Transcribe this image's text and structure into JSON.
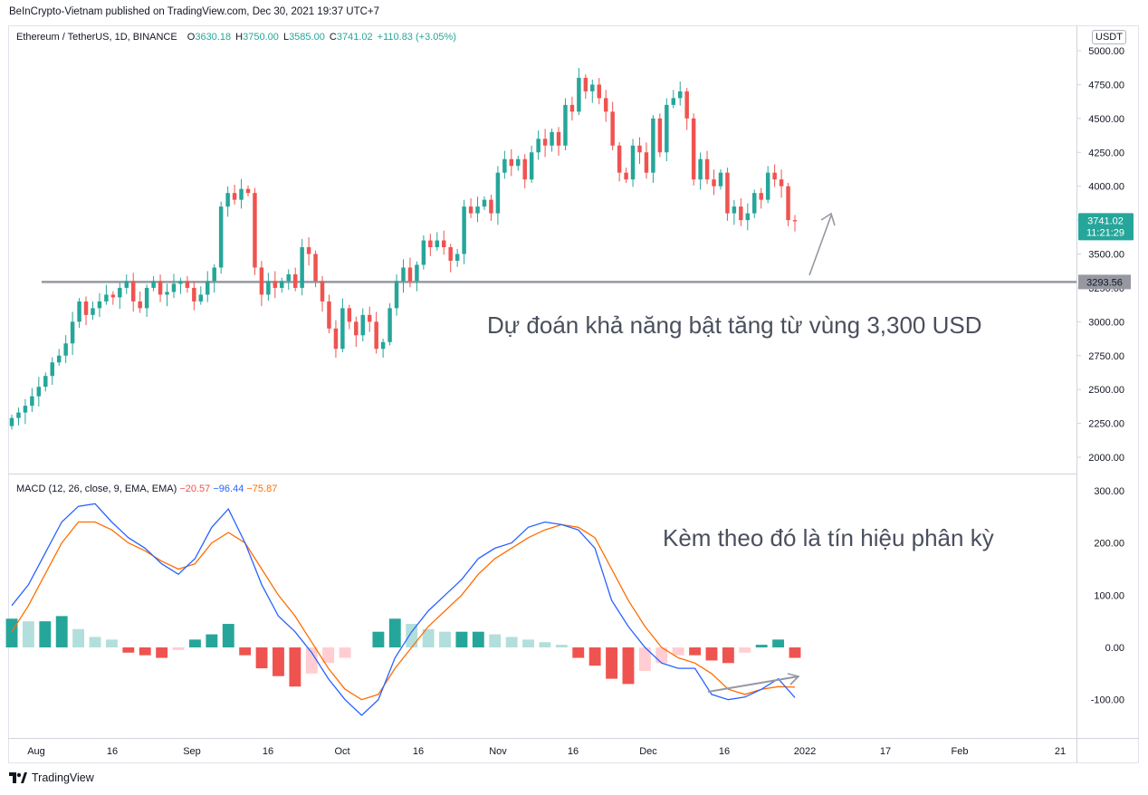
{
  "header": {
    "credit": "BeInCrypto-Vietnam published on TradingView.com, Dec 30, 2021 19:37 UTC+7"
  },
  "legend": {
    "symbol": "Ethereum / TetherUS, 1D, BINANCE",
    "o_label": "O",
    "o": "3630.18",
    "h_label": "H",
    "h": "3750.00",
    "l_label": "L",
    "l": "3585.00",
    "c_label": "C",
    "c": "3741.02",
    "change": "+110.83 (+3.05%)"
  },
  "currency": "USDT",
  "price_badge": {
    "price": "3741.02",
    "countdown": "11:21:29"
  },
  "level_badge": "3293.56",
  "annotations": {
    "main": "Dự đoán khả năng bật tăng từ vùng 3,300 USD",
    "macd": "Kèm theo đó là tín hiệu phân kỳ"
  },
  "macd_legend": {
    "label": "MACD (12, 26, close, 9, EMA, EMA)",
    "hist": "−20.57",
    "macd": "−96.44",
    "signal": "−75.87"
  },
  "footer": {
    "brand": "TradingView"
  },
  "colors": {
    "up": "#26a69a",
    "down": "#ef5350",
    "macd_line": "#2962ff",
    "signal_line": "#ff6d00",
    "hist_up_strong": "#26a69a",
    "hist_up_weak": "#b2dfdb",
    "hist_down_strong": "#ef5350",
    "hist_down_weak": "#ffcdd2",
    "level_line": "#9598a1",
    "badge": "#26a69a"
  },
  "chart_data": [
    {
      "type": "candlestick",
      "title": "Ethereum / TetherUS, 1D, BINANCE",
      "ylabel": "USDT",
      "ylim": [
        1900,
        5100
      ],
      "yticks": [
        "5000.00",
        "4750.00",
        "4500.00",
        "4250.00",
        "4000.00",
        "3750.00",
        "3500.00",
        "3250.00",
        "3000.00",
        "2750.00",
        "2500.00",
        "2250.00",
        "2000.00"
      ],
      "xticks": [
        "Aug",
        "16",
        "Sep",
        "16",
        "Oct",
        "16",
        "Nov",
        "16",
        "Dec",
        "16",
        "2022",
        "17",
        "Feb",
        "21"
      ],
      "support_level": 3293.56,
      "close": [
        2290,
        2330,
        2380,
        2450,
        2520,
        2600,
        2700,
        2750,
        2840,
        3000,
        3150,
        3050,
        3100,
        3150,
        3200,
        3180,
        3250,
        3300,
        3150,
        3100,
        3250,
        3300,
        3200,
        3220,
        3280,
        3300,
        3250,
        3150,
        3200,
        3300,
        3400,
        3850,
        3950,
        3900,
        3980,
        3950,
        3400,
        3200,
        3300,
        3250,
        3300,
        3350,
        3250,
        3550,
        3500,
        3300,
        3150,
        2950,
        2800,
        3100,
        3000,
        2900,
        3050,
        3000,
        2800,
        2850,
        3100,
        3300,
        3400,
        3300,
        3420,
        3600,
        3550,
        3600,
        3550,
        3450,
        3500,
        3850,
        3800,
        3850,
        3900,
        3800,
        4100,
        4200,
        4150,
        4200,
        4050,
        4250,
        4350,
        4300,
        4400,
        4300,
        4600,
        4550,
        4800,
        4700,
        4750,
        4650,
        4550,
        4300,
        4100,
        4050,
        4300,
        4250,
        4100,
        4500,
        4250,
        4600,
        4650,
        4700,
        4500,
        4050,
        4200,
        4050,
        4000,
        4100,
        3800,
        3850,
        3750,
        3800,
        3950,
        3900,
        4100,
        4050,
        4000,
        3750,
        3741
      ]
    },
    {
      "type": "line",
      "title": "MACD (12, 26, close, 9, EMA, EMA)",
      "ylim": [
        -170,
        310
      ],
      "yticks": [
        "300.00",
        "200.00",
        "100.00",
        "0.00",
        "-100.00"
      ],
      "series": [
        {
          "name": "MACD",
          "values": [
            80,
            120,
            180,
            240,
            270,
            275,
            240,
            210,
            190,
            160,
            140,
            170,
            230,
            265,
            200,
            120,
            60,
            30,
            -10,
            -60,
            -100,
            -130,
            -100,
            -20,
            30,
            70,
            100,
            130,
            170,
            190,
            200,
            230,
            240,
            235,
            225,
            190,
            90,
            40,
            0,
            -30,
            -40,
            -40,
            -90,
            -100,
            -95,
            -80,
            -60,
            -96
          ]
        },
        {
          "name": "Signal",
          "values": [
            30,
            80,
            140,
            200,
            240,
            240,
            225,
            200,
            185,
            165,
            150,
            160,
            200,
            220,
            200,
            150,
            100,
            60,
            10,
            -40,
            -80,
            -100,
            -90,
            -40,
            0,
            40,
            70,
            100,
            140,
            170,
            190,
            210,
            225,
            235,
            230,
            210,
            150,
            90,
            40,
            0,
            -20,
            -30,
            -50,
            -80,
            -90,
            -80,
            -75,
            -76
          ]
        },
        {
          "name": "Histogram",
          "values": [
            55,
            50,
            50,
            60,
            35,
            20,
            15,
            -10,
            -15,
            -20,
            -5,
            15,
            25,
            45,
            -15,
            -40,
            -55,
            -75,
            -50,
            -30,
            -20,
            0,
            30,
            55,
            45,
            35,
            30,
            30,
            30,
            25,
            20,
            15,
            10,
            5,
            -20,
            -35,
            -60,
            -70,
            -45,
            -30,
            -15,
            -15,
            -25,
            -30,
            -10,
            5,
            15,
            -20
          ]
        }
      ]
    }
  ]
}
